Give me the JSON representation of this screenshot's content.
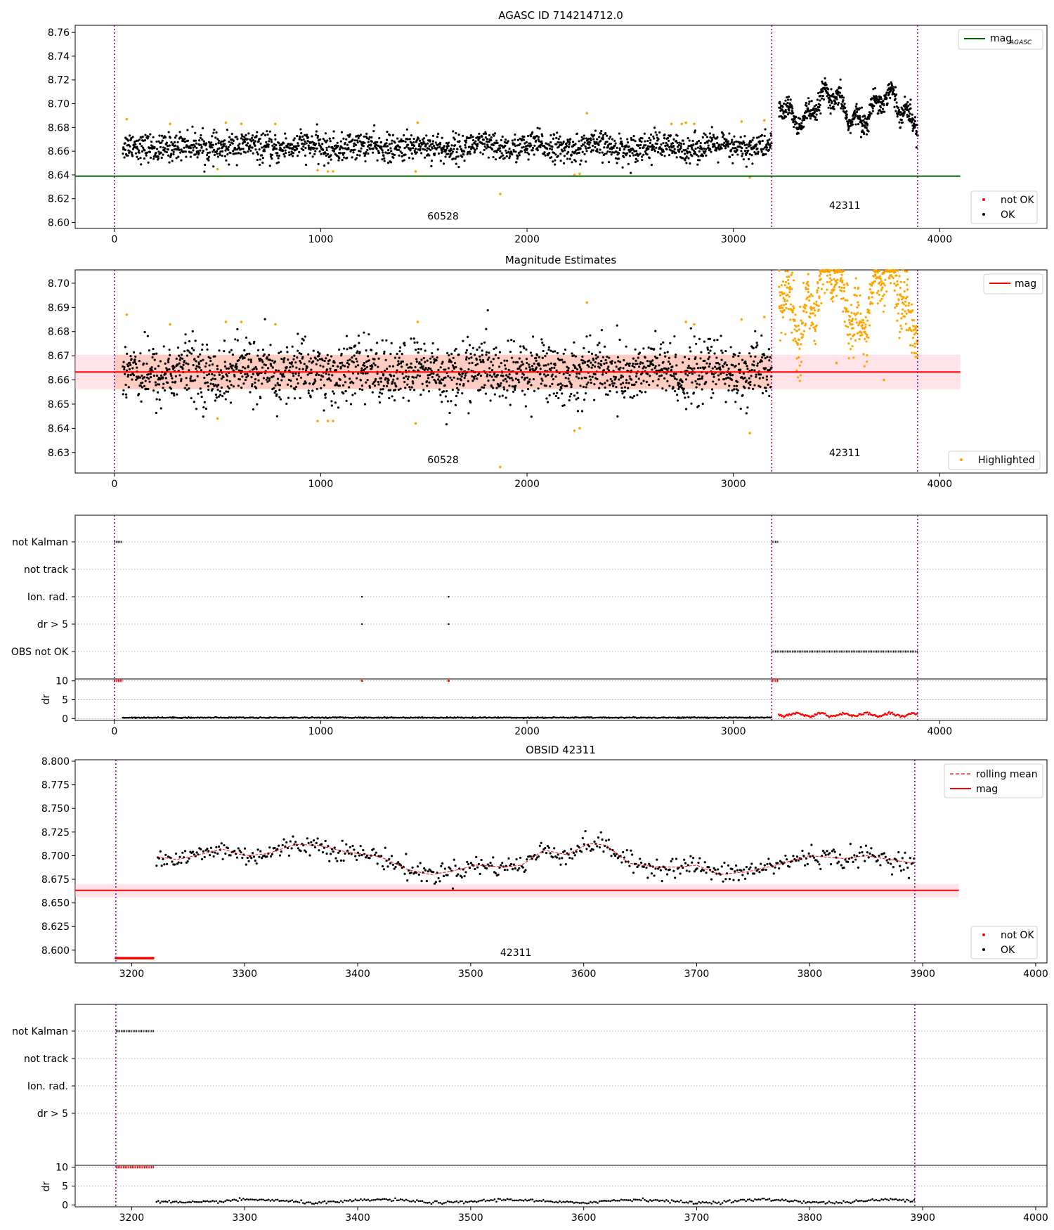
{
  "figure_title": "AGASC ID 714214712.0",
  "colors": {
    "ok": "#000000",
    "not_ok": "#ff0000",
    "highlight": "#ffa500",
    "agasc_line": "#006400",
    "mag_line": "#ff0000",
    "obs_boundary": "#800080",
    "band_fill": "#ffc0cb",
    "band_inner": "#ffa07a",
    "grid": "#b0b0b0"
  },
  "flag_rows": [
    "not Kalman",
    "not track",
    "Ion. rad.",
    "dr > 5",
    "OBS not OK"
  ],
  "chart_data": [
    {
      "id": "agasc",
      "type": "scatter",
      "title": "AGASC ID 714214712.0",
      "xlim": [
        -190,
        4520
      ],
      "ylim": [
        8.595,
        8.766
      ],
      "xticks": [
        0,
        1000,
        2000,
        3000,
        4000
      ],
      "yticks": [
        8.6,
        8.62,
        8.64,
        8.66,
        8.68,
        8.7,
        8.72,
        8.74,
        8.76
      ],
      "ytick_decimals": 2,
      "mag_agasc": 8.639,
      "mag_agasc_xrange": [
        -190,
        4100
      ],
      "obs_boundaries": [
        0,
        3186,
        3893
      ],
      "obs_labels": [
        {
          "text": "60528",
          "x": 1593,
          "y": 8.6025
        },
        {
          "text": "42311",
          "x": 3540,
          "y": 8.6115
        }
      ],
      "segments": [
        {
          "x0": 40,
          "x1": 3186,
          "base": 8.6635,
          "noise": 0.0058,
          "wave": 0.0018,
          "n": 1850
        },
        {
          "x0": 3220,
          "x1": 3893,
          "base": 8.696,
          "noise": 0.0045,
          "wave": 0.011,
          "n": 560
        }
      ],
      "highlighted": [
        [
          60,
          8.687
        ],
        [
          270,
          8.683
        ],
        [
          540,
          8.684
        ],
        [
          615,
          8.683
        ],
        [
          780,
          8.683
        ],
        [
          500,
          8.645
        ],
        [
          985,
          8.644
        ],
        [
          1035,
          8.643
        ],
        [
          1060,
          8.643
        ],
        [
          1460,
          8.643
        ],
        [
          1470,
          8.684
        ],
        [
          1870,
          8.624
        ],
        [
          2230,
          8.64
        ],
        [
          2255,
          8.641
        ],
        [
          2290,
          8.692
        ],
        [
          2770,
          8.684
        ],
        [
          2810,
          8.683
        ],
        [
          3040,
          8.685
        ],
        [
          3080,
          8.638
        ],
        [
          3150,
          8.686
        ],
        [
          2700,
          8.683
        ],
        [
          2750,
          8.683
        ]
      ],
      "legend": {
        "line": "mag",
        "line_sub": "AGASC",
        "not_ok": "not OK",
        "ok": "OK"
      }
    },
    {
      "id": "mag_estimates",
      "type": "scatter",
      "title": "Magnitude Estimates",
      "xlim": [
        -190,
        4520
      ],
      "ylim": [
        8.6215,
        8.7055
      ],
      "xticks": [
        0,
        1000,
        2000,
        3000,
        4000
      ],
      "yticks": [
        8.63,
        8.64,
        8.65,
        8.66,
        8.67,
        8.68,
        8.69,
        8.7
      ],
      "ytick_decimals": 2,
      "mag": 8.6633,
      "band_outer": [
        8.6562,
        8.6704
      ],
      "band_inner_until": 3186,
      "band_xrange": [
        -190,
        4100
      ],
      "obs_boundaries": [
        0,
        3186,
        3893
      ],
      "obs_labels": [
        {
          "text": "60528",
          "x": 1593,
          "y": 8.6255
        },
        {
          "text": "42311",
          "x": 3540,
          "y": 8.6285
        }
      ],
      "segments": [
        {
          "x0": 40,
          "x1": 3186,
          "base": 8.6633,
          "noise": 0.0062,
          "wave": 0.0018,
          "n": 1850
        },
        {
          "x0": 3220,
          "x1": 3893,
          "base": 8.694,
          "noise": 0.006,
          "wave": 0.012,
          "n": 560,
          "color": "highlight"
        }
      ],
      "highlighted": [
        [
          60,
          8.687
        ],
        [
          270,
          8.683
        ],
        [
          540,
          8.684
        ],
        [
          615,
          8.684
        ],
        [
          780,
          8.683
        ],
        [
          500,
          8.644
        ],
        [
          985,
          8.643
        ],
        [
          1035,
          8.643
        ],
        [
          1060,
          8.643
        ],
        [
          1460,
          8.642
        ],
        [
          1470,
          8.684
        ],
        [
          1870,
          8.624
        ],
        [
          2230,
          8.639
        ],
        [
          2255,
          8.64
        ],
        [
          2290,
          8.692
        ],
        [
          2770,
          8.684
        ],
        [
          2810,
          8.683
        ],
        [
          3040,
          8.685
        ],
        [
          3080,
          8.638
        ],
        [
          3150,
          8.686
        ],
        [
          3500,
          8.667
        ],
        [
          3730,
          8.66
        ],
        [
          3890,
          8.676
        ]
      ],
      "legend": {
        "line": "mag",
        "highlighted": "Highlighted"
      }
    },
    {
      "id": "flags_all",
      "type": "scatter",
      "xlim": [
        -190,
        4520
      ],
      "xticks": [
        0,
        1000,
        2000,
        3000,
        4000
      ],
      "rows": [
        "not Kalman",
        "not track",
        "Ion. rad.",
        "dr > 5",
        "OBS not OK"
      ],
      "flag_ranges": [
        {
          "row": 0,
          "x0": 0,
          "x1": 40
        },
        {
          "row": 0,
          "x0": 3186,
          "x1": 3220
        },
        {
          "row": 4,
          "x0": 3186,
          "x1": 3893
        }
      ],
      "flag_points": [
        {
          "row": 2,
          "x": 1200
        },
        {
          "row": 2,
          "x": 1620
        },
        {
          "row": 3,
          "x": 1200
        },
        {
          "row": 3,
          "x": 1620
        }
      ],
      "obs_boundaries": [
        0,
        3186,
        3893
      ],
      "dr": {
        "ylim": [
          -0.5,
          10.5
        ],
        "yticks": [
          0,
          5,
          10
        ],
        "ylabel": "dr",
        "red_top": [
          {
            "x0": 0,
            "x1": 40
          },
          {
            "x0": 3186,
            "x1": 3220
          }
        ],
        "red_points_top": [
          1200,
          1620
        ],
        "ok_segment": {
          "x0": 40,
          "x1": 3186,
          "base": 0.25,
          "noise": 0.12
        },
        "bad_segment": {
          "x0": 3220,
          "x1": 3893,
          "base": 1.0,
          "noise": 0.4
        }
      }
    },
    {
      "id": "obsid",
      "type": "scatter",
      "title": "OBSID 42311",
      "xlim": [
        3150,
        4010
      ],
      "ylim": [
        8.5865,
        8.8015
      ],
      "xticks": [
        3200,
        3300,
        3400,
        3500,
        3600,
        3700,
        3800,
        3900,
        4000
      ],
      "yticks": [
        8.6,
        8.625,
        8.65,
        8.675,
        8.7,
        8.725,
        8.75,
        8.775,
        8.8
      ],
      "ytick_decimals": 3,
      "mag": 8.6633,
      "band": [
        8.656,
        8.67
      ],
      "band_xrange": [
        3150,
        3932
      ],
      "obs_boundaries": [
        3186,
        3893
      ],
      "obs_label": {
        "text": "42311",
        "x": 3540,
        "y": 8.594
      },
      "not_ok_range": {
        "x0": 3186,
        "x1": 3220,
        "y": 8.5915
      },
      "ok_range": {
        "x0": 3222,
        "x1": 3893
      },
      "rolling_mean": [
        [
          3222,
          8.699
        ],
        [
          3240,
          8.696
        ],
        [
          3260,
          8.701
        ],
        [
          3280,
          8.707
        ],
        [
          3300,
          8.7
        ],
        [
          3320,
          8.702
        ],
        [
          3345,
          8.712
        ],
        [
          3365,
          8.711
        ],
        [
          3390,
          8.704
        ],
        [
          3420,
          8.699
        ],
        [
          3445,
          8.685
        ],
        [
          3465,
          8.68
        ],
        [
          3485,
          8.684
        ],
        [
          3505,
          8.69
        ],
        [
          3530,
          8.688
        ],
        [
          3545,
          8.69
        ],
        [
          3565,
          8.706
        ],
        [
          3585,
          8.701
        ],
        [
          3605,
          8.713
        ],
        [
          3620,
          8.711
        ],
        [
          3640,
          8.692
        ],
        [
          3665,
          8.688
        ],
        [
          3685,
          8.688
        ],
        [
          3700,
          8.69
        ],
        [
          3720,
          8.68
        ],
        [
          3745,
          8.683
        ],
        [
          3770,
          8.69
        ],
        [
          3800,
          8.7
        ],
        [
          3830,
          8.697
        ],
        [
          3850,
          8.7
        ],
        [
          3870,
          8.696
        ],
        [
          3893,
          8.692
        ]
      ],
      "legend": {
        "rolling": "rolling mean",
        "mag": "mag",
        "not_ok": "not OK",
        "ok": "OK"
      }
    },
    {
      "id": "flags_obsid",
      "type": "scatter",
      "xlim": [
        3150,
        4010
      ],
      "xticks": [
        3200,
        3300,
        3400,
        3500,
        3600,
        3700,
        3800,
        3900,
        4000
      ],
      "rows": [
        "not Kalman",
        "not track",
        "Ion. rad.",
        "dr > 5"
      ],
      "flag_ranges": [
        {
          "row": 0,
          "x0": 3186,
          "x1": 3220
        }
      ],
      "obs_boundaries": [
        3186,
        3893
      ],
      "dr": {
        "ylim": [
          -0.5,
          10.5
        ],
        "yticks": [
          0,
          5,
          10
        ],
        "ylabel": "dr",
        "red_top": [
          {
            "x0": 3186,
            "x1": 3220
          }
        ],
        "bad_segment": {
          "x0": 3222,
          "x1": 3893,
          "base": 1.0,
          "noise": 0.4
        }
      }
    }
  ]
}
